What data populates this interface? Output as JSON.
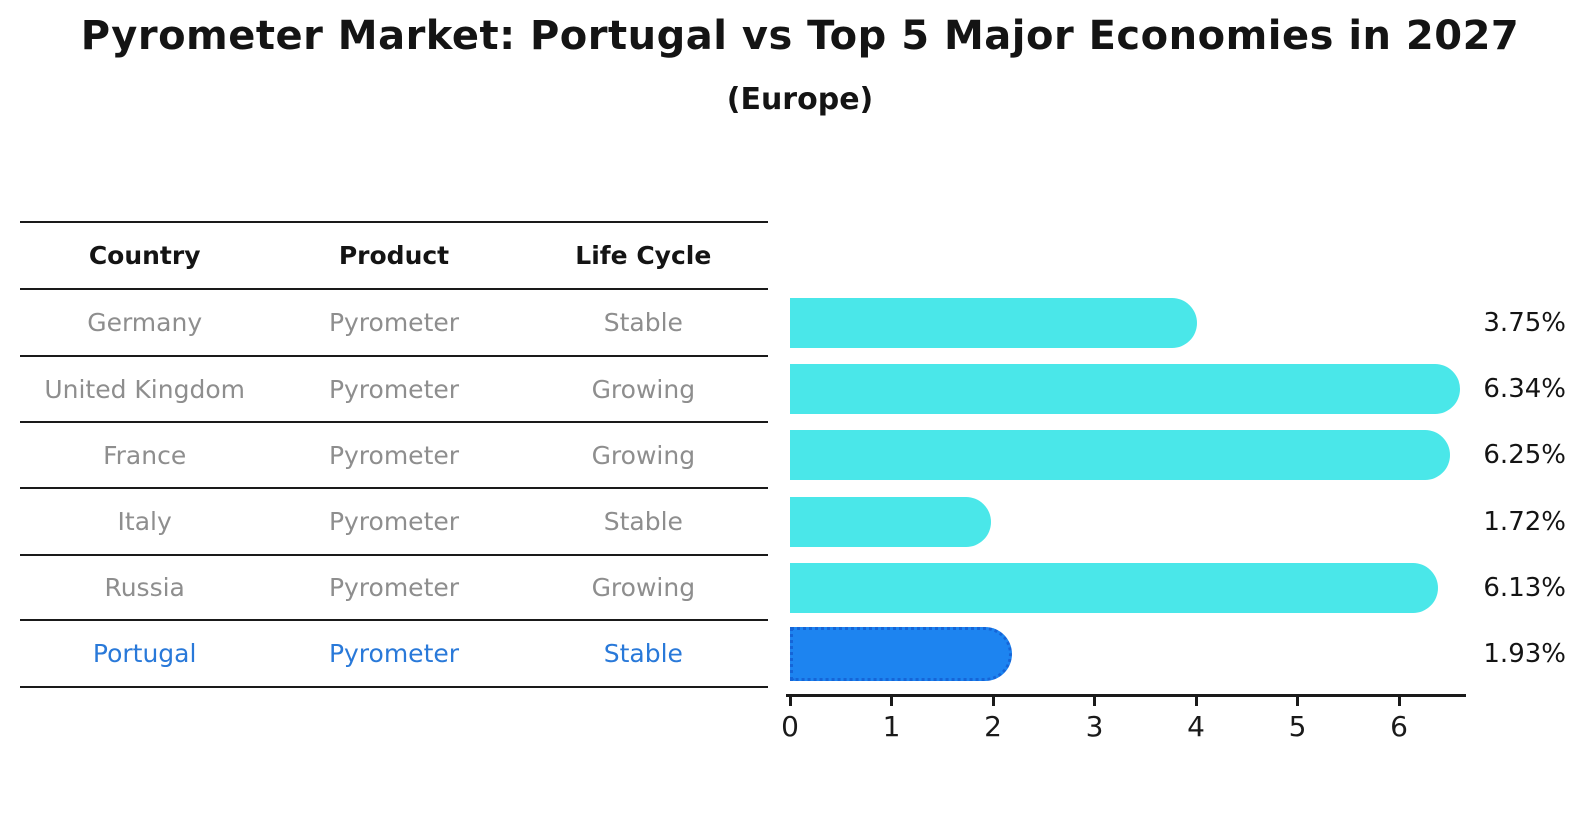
{
  "title": "Pyrometer Market: Portugal vs Top 5 Major Economies in 2027",
  "subtitle": "(Europe)",
  "table": {
    "headers": [
      "Country",
      "Product",
      "Life Cycle"
    ],
    "rows": [
      {
        "country": "Germany",
        "product": "Pyrometer",
        "life_cycle": "Stable",
        "highlight": false
      },
      {
        "country": "United Kingdom",
        "product": "Pyrometer",
        "life_cycle": "Growing",
        "highlight": false
      },
      {
        "country": "France",
        "product": "Pyrometer",
        "life_cycle": "Growing",
        "highlight": false
      },
      {
        "country": "Italy",
        "product": "Pyrometer",
        "life_cycle": "Stable",
        "highlight": false
      },
      {
        "country": "Russia",
        "product": "Pyrometer",
        "life_cycle": "Growing",
        "highlight": false
      },
      {
        "country": "Portugal",
        "product": "Pyrometer",
        "life_cycle": "Stable",
        "highlight": true
      }
    ]
  },
  "chart_data": {
    "type": "bar",
    "orientation": "horizontal",
    "title": "Pyrometer Market: Portugal vs Top 5 Major Economies in 2027",
    "subtitle": "(Europe)",
    "categories": [
      "Germany",
      "United Kingdom",
      "France",
      "Italy",
      "Russia",
      "Portugal"
    ],
    "values": [
      3.75,
      6.34,
      6.25,
      1.72,
      6.13,
      1.93
    ],
    "value_labels": [
      "3.75%",
      "6.34%",
      "6.25%",
      "1.72%",
      "6.13%",
      "1.93%"
    ],
    "xticks": [
      "0",
      "1",
      "2",
      "3",
      "4",
      "5",
      "6"
    ],
    "xlim": [
      0,
      6.6
    ],
    "grid": false,
    "legend": false,
    "highlight_category": "Portugal",
    "colors": {
      "bar": "#4ae7e9",
      "highlight_bar": "#1d84f0",
      "highlight_bar_border": "#1565d8",
      "highlight_text": "#2979d9",
      "table_text": "#8e8e8e",
      "heading_text": "#141414"
    }
  }
}
